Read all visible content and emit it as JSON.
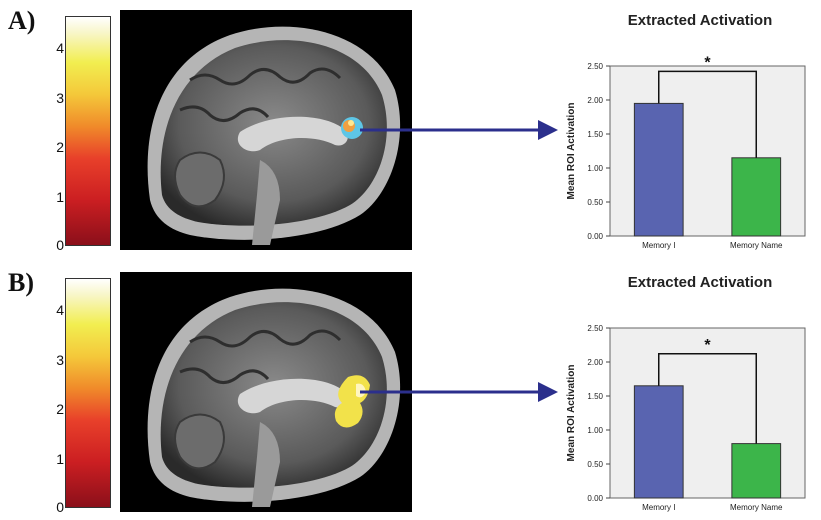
{
  "colorbar": {
    "ticks": [
      "0",
      "1",
      "2",
      "3",
      "4"
    ],
    "max": 4.6
  },
  "panels": [
    {
      "label": "A)",
      "chart_data": {
        "type": "bar",
        "title": "Extracted Activation",
        "ylabel": "Mean ROI Activation",
        "xlabel": "",
        "categories": [
          "Memory I",
          "Memory Name"
        ],
        "values": [
          1.95,
          1.15
        ],
        "ylim": [
          0,
          2.5
        ],
        "yticks": [
          "0.00",
          "0.50",
          "1.00",
          "1.50",
          "2.00",
          "2.50"
        ],
        "bar_colors": [
          "#5964b0",
          "#3cb54a"
        ],
        "significance": "*",
        "grid": false
      }
    },
    {
      "label": "B)",
      "chart_data": {
        "type": "bar",
        "title": "Extracted Activation",
        "ylabel": "Mean ROI Activation",
        "xlabel": "",
        "categories": [
          "Memory I",
          "Memory Name"
        ],
        "values": [
          1.65,
          0.8
        ],
        "ylim": [
          0,
          2.5
        ],
        "yticks": [
          "0.00",
          "0.50",
          "1.00",
          "1.50",
          "2.00",
          "2.50"
        ],
        "bar_colors": [
          "#5964b0",
          "#3cb54a"
        ],
        "significance": "*",
        "grid": false
      }
    }
  ],
  "colors": {
    "arrow": "#2b2f8c",
    "plot_bg": "#efefef"
  }
}
